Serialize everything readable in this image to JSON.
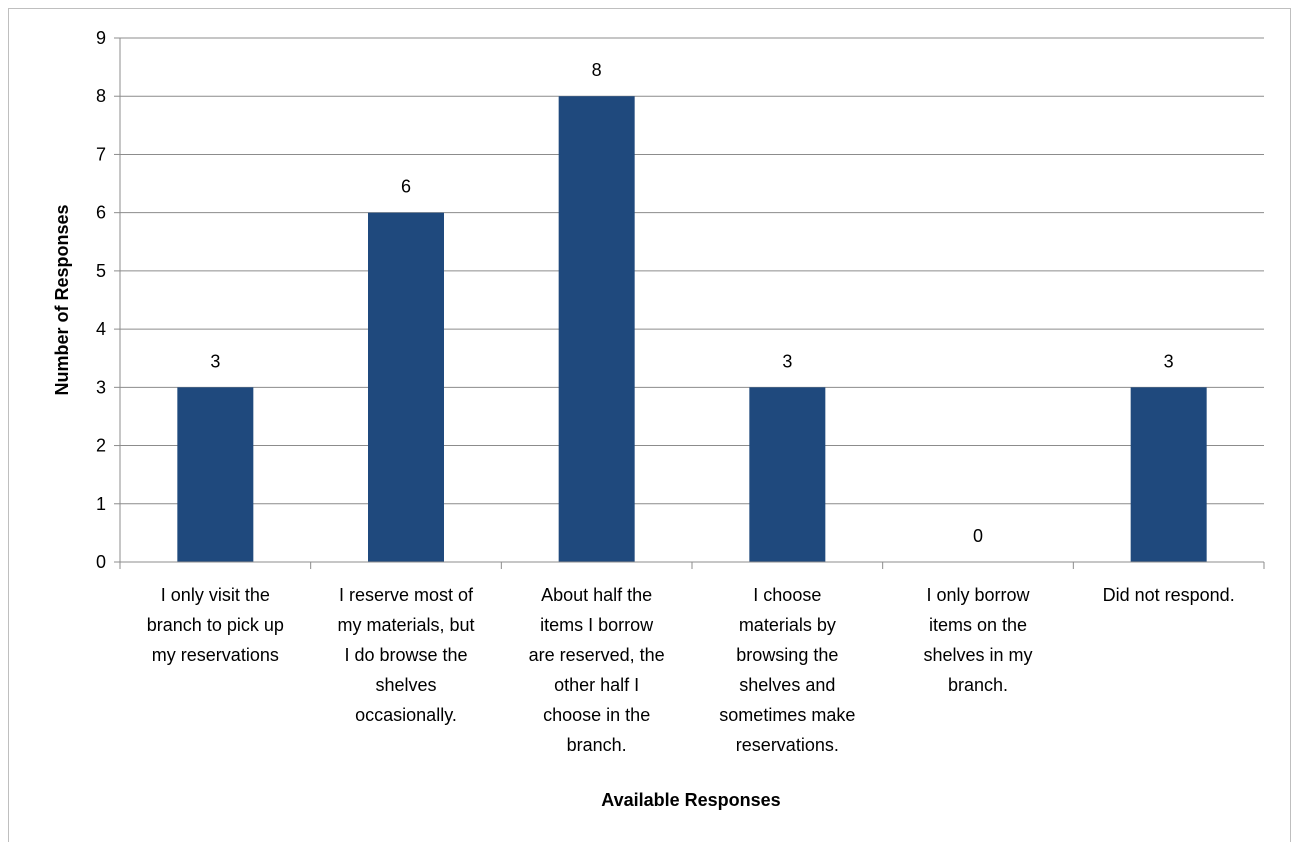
{
  "chart_data": {
    "type": "bar",
    "categories": [
      "I only visit the branch to pick up my reservations",
      "I reserve most of my materials, but I do browse the shelves occasionally.",
      "About half the items I borrow are reserved, the other half I choose in the branch.",
      "I choose materials by browsing the shelves and sometimes make reservations.",
      "I only borrow items on the shelves in my branch.",
      "Did not respond."
    ],
    "category_lines": [
      [
        "I only visit the",
        "branch to pick up",
        "my reservations"
      ],
      [
        "I reserve most of",
        "my materials, but",
        "I do browse the",
        "shelves",
        "occasionally."
      ],
      [
        "About half the",
        "items I borrow",
        "are reserved, the",
        "other half I",
        "choose in the",
        "branch."
      ],
      [
        "I choose",
        "materials by",
        "browsing the",
        "shelves and",
        "sometimes make",
        "reservations."
      ],
      [
        "I only borrow",
        "items on the",
        "shelves in my",
        "branch."
      ],
      [
        "Did not respond."
      ]
    ],
    "values": [
      3,
      6,
      8,
      3,
      0,
      3
    ],
    "data_labels": [
      "3",
      "6",
      "8",
      "3",
      "0",
      "3"
    ],
    "yticks": [
      "0",
      "1",
      "2",
      "3",
      "4",
      "5",
      "6",
      "7",
      "8",
      "9"
    ],
    "ylim": [
      0,
      9
    ],
    "xlabel": "Available Responses",
    "ylabel": "Number of Responses",
    "grid": true,
    "legend": "none",
    "bar_color": "#1f497d",
    "grid_color": "#8c8c8c"
  }
}
